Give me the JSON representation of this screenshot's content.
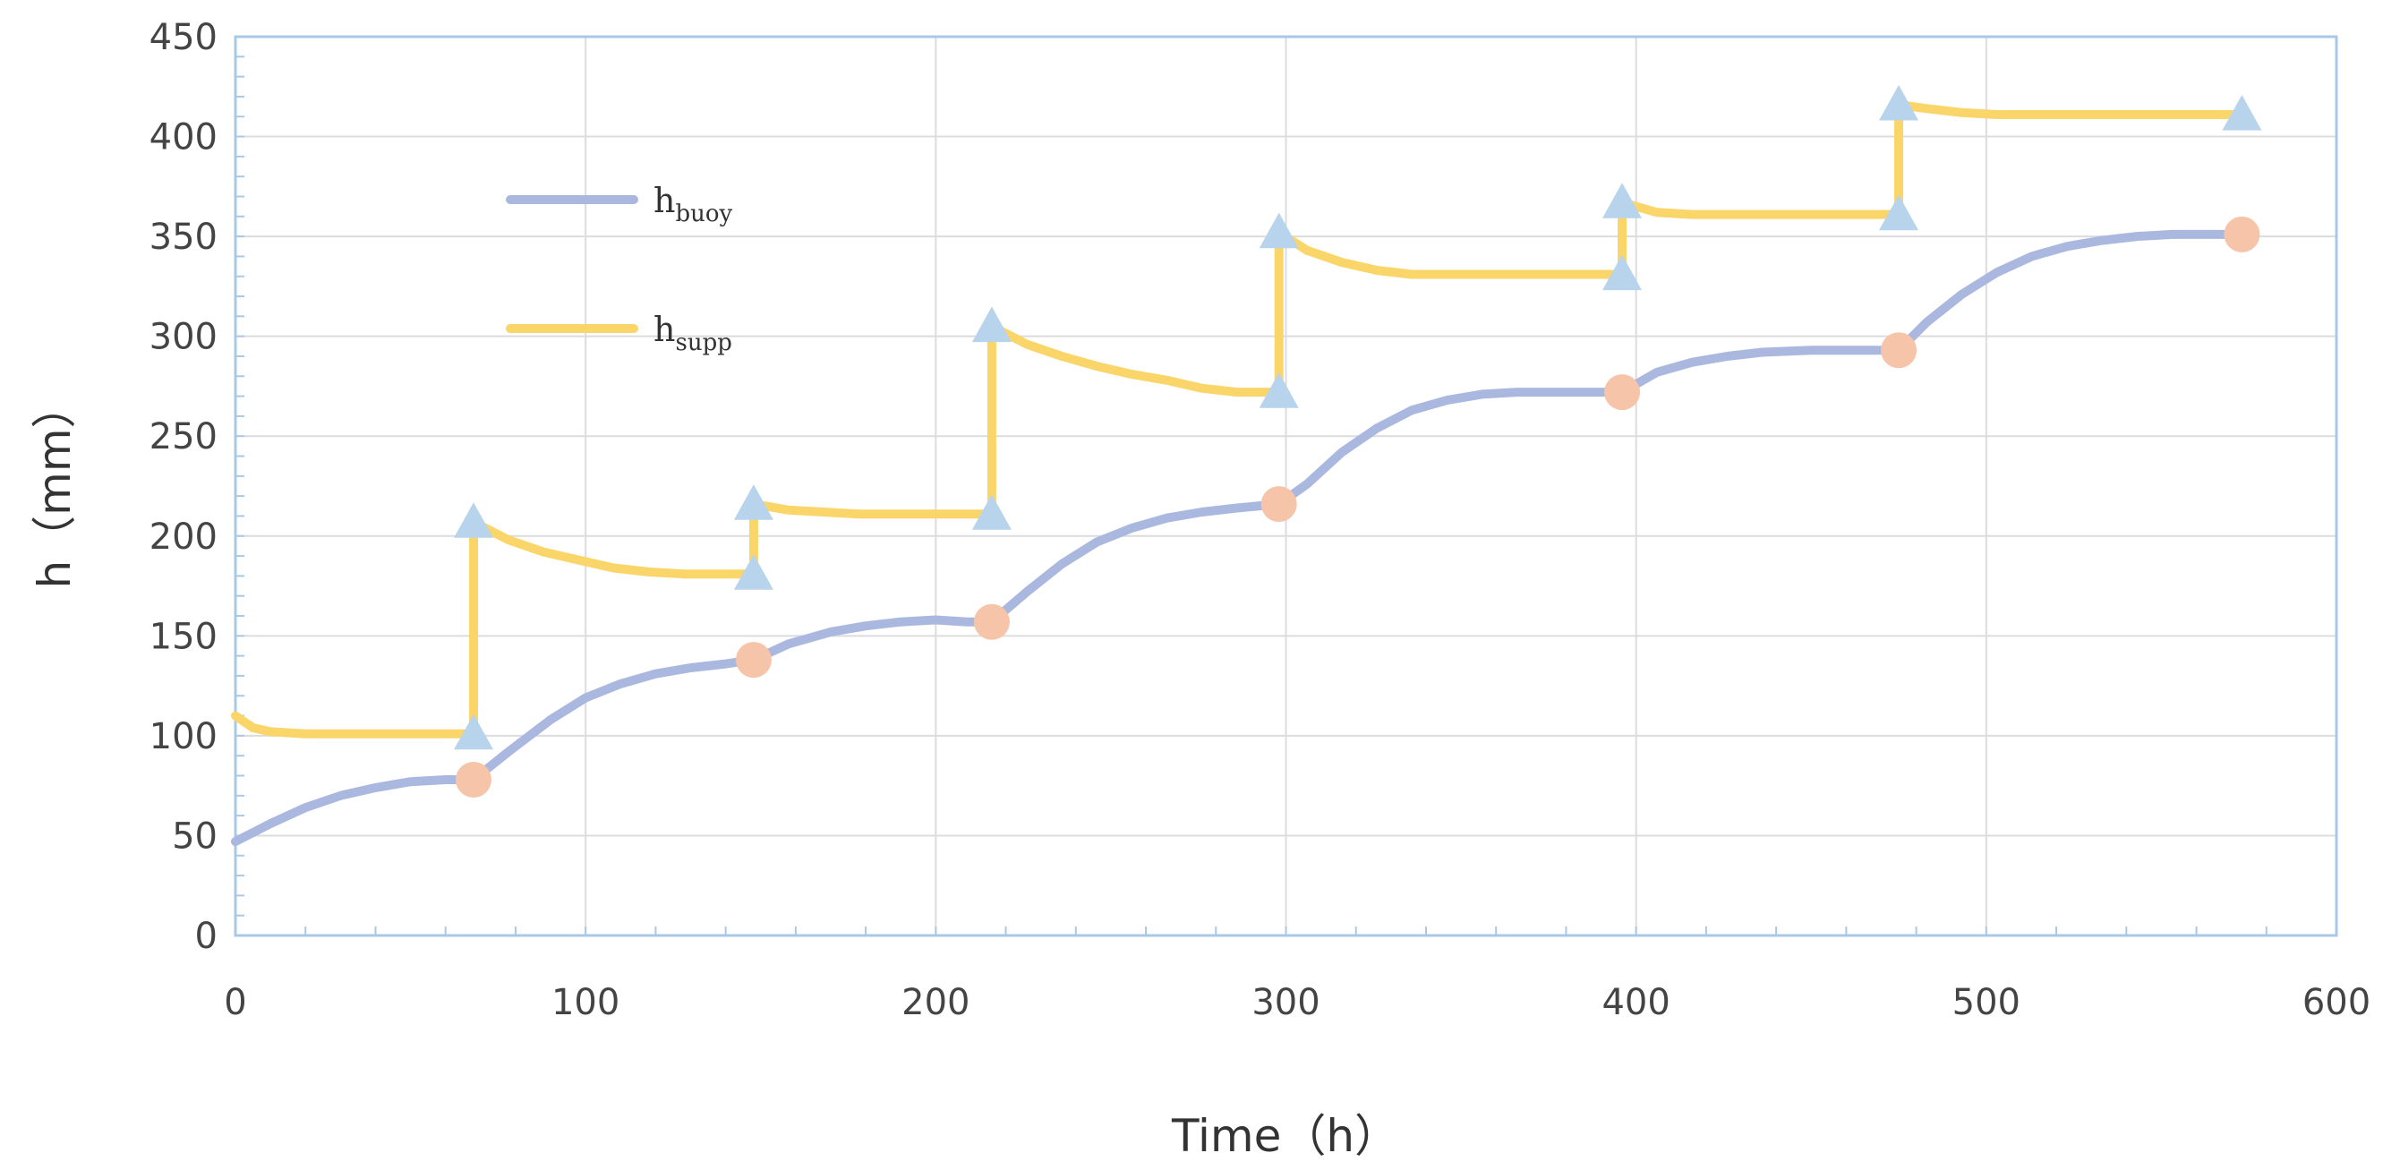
{
  "chart_data": {
    "type": "line",
    "xlabel": "Time（h）",
    "ylabel": "h（mm）",
    "xlim": [
      0,
      600
    ],
    "ylim": [
      0,
      450
    ],
    "xticks": [
      0,
      100,
      200,
      300,
      400,
      500,
      600
    ],
    "yticks": [
      0,
      50,
      100,
      150,
      200,
      250,
      300,
      350,
      400,
      450
    ],
    "grid": true,
    "legend_position": "upper-left",
    "series": [
      {
        "name": "h",
        "name_sub": "buoy",
        "color": "#aab8e0",
        "marker": "circle",
        "marker_color": "#f6c4a8",
        "points": [
          [
            0,
            47
          ],
          [
            10,
            56
          ],
          [
            20,
            64
          ],
          [
            30,
            70
          ],
          [
            40,
            74
          ],
          [
            50,
            77
          ],
          [
            60,
            78
          ],
          [
            68,
            78
          ],
          [
            78,
            92
          ],
          [
            90,
            108
          ],
          [
            100,
            119
          ],
          [
            110,
            126
          ],
          [
            120,
            131
          ],
          [
            130,
            134
          ],
          [
            140,
            136
          ],
          [
            148,
            138
          ],
          [
            158,
            146
          ],
          [
            170,
            152
          ],
          [
            180,
            155
          ],
          [
            190,
            157
          ],
          [
            200,
            158
          ],
          [
            209,
            157
          ],
          [
            216,
            157
          ],
          [
            226,
            172
          ],
          [
            236,
            186
          ],
          [
            246,
            197
          ],
          [
            256,
            204
          ],
          [
            266,
            209
          ],
          [
            276,
            212
          ],
          [
            286,
            214
          ],
          [
            298,
            216
          ],
          [
            306,
            226
          ],
          [
            316,
            242
          ],
          [
            326,
            254
          ],
          [
            336,
            263
          ],
          [
            346,
            268
          ],
          [
            356,
            271
          ],
          [
            366,
            272
          ],
          [
            380,
            272
          ],
          [
            396,
            272
          ],
          [
            406,
            282
          ],
          [
            416,
            287
          ],
          [
            426,
            290
          ],
          [
            436,
            292
          ],
          [
            450,
            293
          ],
          [
            463,
            293
          ],
          [
            475,
            293
          ],
          [
            483,
            307
          ],
          [
            493,
            321
          ],
          [
            503,
            332
          ],
          [
            513,
            340
          ],
          [
            523,
            345
          ],
          [
            533,
            348
          ],
          [
            543,
            350
          ],
          [
            553,
            351
          ],
          [
            573,
            351
          ]
        ],
        "markers": [
          [
            68,
            78
          ],
          [
            148,
            138
          ],
          [
            216,
            157
          ],
          [
            298,
            216
          ],
          [
            396,
            272
          ],
          [
            475,
            293
          ],
          [
            573,
            351
          ]
        ]
      },
      {
        "name": "h",
        "name_sub": "supp",
        "color": "#fad56a",
        "marker": "triangle",
        "marker_color": "#b8d3ec",
        "points": [
          [
            0,
            110
          ],
          [
            5,
            104
          ],
          [
            10,
            102
          ],
          [
            20,
            101
          ],
          [
            68,
            101
          ],
          [
            68,
            207
          ],
          [
            78,
            198
          ],
          [
            88,
            192
          ],
          [
            98,
            188
          ],
          [
            108,
            184
          ],
          [
            118,
            182
          ],
          [
            128,
            181
          ],
          [
            148,
            181
          ],
          [
            148,
            216
          ],
          [
            158,
            213
          ],
          [
            168,
            212
          ],
          [
            178,
            211
          ],
          [
            216,
            211
          ],
          [
            216,
            305
          ],
          [
            226,
            296
          ],
          [
            236,
            290
          ],
          [
            246,
            285
          ],
          [
            256,
            281
          ],
          [
            266,
            278
          ],
          [
            276,
            274
          ],
          [
            286,
            272
          ],
          [
            298,
            272
          ],
          [
            298,
            352
          ],
          [
            306,
            343
          ],
          [
            316,
            337
          ],
          [
            326,
            333
          ],
          [
            336,
            331
          ],
          [
            346,
            331
          ],
          [
            396,
            331
          ],
          [
            396,
            367
          ],
          [
            406,
            362
          ],
          [
            416,
            361
          ],
          [
            475,
            361
          ],
          [
            475,
            416
          ],
          [
            483,
            414
          ],
          [
            493,
            412
          ],
          [
            503,
            411
          ],
          [
            573,
            411
          ]
        ],
        "markers": [
          [
            68,
            101
          ],
          [
            68,
            207
          ],
          [
            148,
            181
          ],
          [
            148,
            216
          ],
          [
            216,
            211
          ],
          [
            216,
            305
          ],
          [
            298,
            272
          ],
          [
            298,
            352
          ],
          [
            396,
            331
          ],
          [
            396,
            367
          ],
          [
            475,
            361
          ],
          [
            475,
            416
          ],
          [
            573,
            411
          ]
        ]
      }
    ]
  }
}
